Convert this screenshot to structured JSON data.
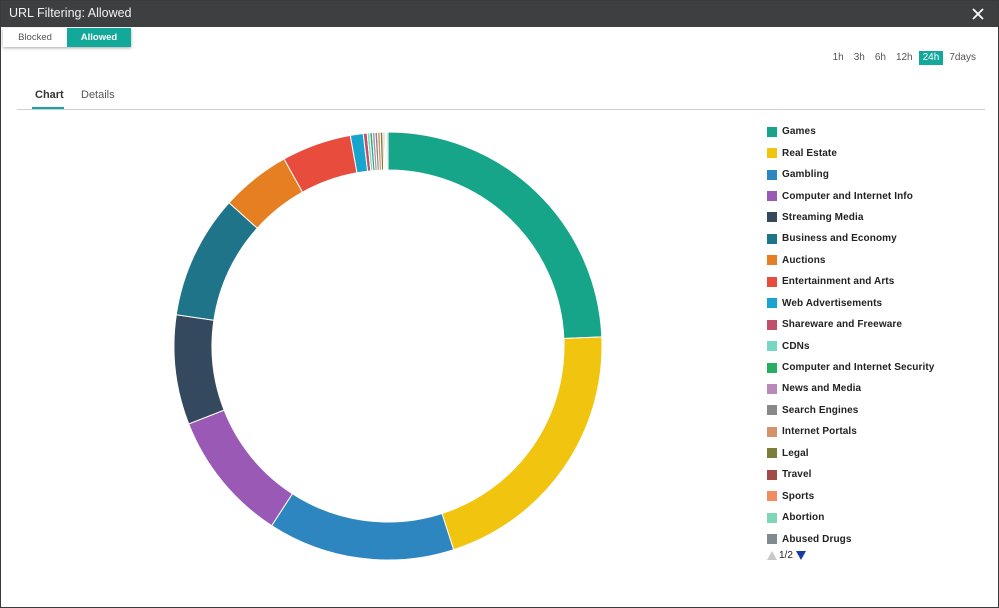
{
  "window": {
    "title": "URL Filtering: Allowed"
  },
  "toggle": {
    "blocked_label": "Blocked",
    "allowed_label": "Allowed",
    "selected": "Allowed"
  },
  "time_ranges": {
    "options": [
      "1h",
      "3h",
      "6h",
      "12h",
      "24h",
      "7days"
    ],
    "selected": "24h"
  },
  "tabs": [
    {
      "label": "Chart",
      "active": true
    },
    {
      "label": "Details",
      "active": false
    }
  ],
  "pager": {
    "text": "1/2"
  },
  "icons": {
    "close": "close-icon",
    "prev": "prev-page-icon",
    "next": "next-page-icon"
  },
  "chart_data": {
    "type": "pie",
    "donut": true,
    "legend_position": "right",
    "categories": [
      "Games",
      "Real Estate",
      "Gambling",
      "Computer and Internet Info",
      "Streaming Media",
      "Business and Economy",
      "Auctions",
      "Entertainment and Arts",
      "Web Advertisements",
      "Shareware and Freeware",
      "CDNs",
      "Computer and Internet Security",
      "News and Media",
      "Search Engines",
      "Internet Portals",
      "Legal",
      "Travel",
      "Sports",
      "Abortion",
      "Abused Drugs"
    ],
    "values": [
      25.0,
      21.3,
      14.5,
      10.2,
      8.5,
      9.6,
      5.4,
      5.4,
      1.0,
      0.3,
      0.2,
      0.2,
      0.2,
      0.2,
      0.2,
      0.2,
      0.1,
      0.1,
      0.1,
      0.1
    ],
    "colors": [
      "#17a589",
      "#f1c40f",
      "#2e86c1",
      "#9b59b6",
      "#34495e",
      "#1f7489",
      "#e67e22",
      "#e74c3c",
      "#17a5cd",
      "#c0506a",
      "#76d7c4",
      "#27ae60",
      "#b98ab9",
      "#888888",
      "#d4936a",
      "#7d7d3a",
      "#a04a4a",
      "#f08c5e",
      "#7fd6b8",
      "#808a90"
    ]
  }
}
